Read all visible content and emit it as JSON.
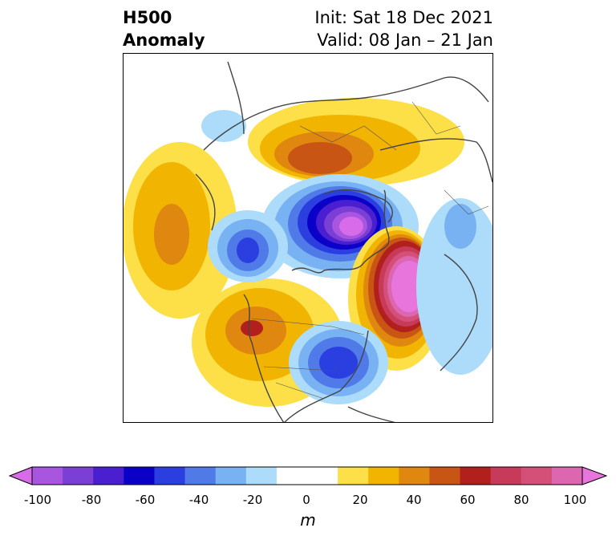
{
  "header": {
    "title_line1": "H500",
    "title_line2": "Anomaly",
    "init_text": "Init: Sat 18 Dec 2021",
    "valid_text": "Valid: 08 Jan – 21 Jan"
  },
  "colorbar": {
    "unit": "m",
    "ticks": [
      "-100",
      "-80",
      "-60",
      "-40",
      "-20",
      "0",
      "20",
      "40",
      "60",
      "80",
      "100"
    ],
    "bins": [
      {
        "range": "-100 to -90",
        "color": "#d86ce8"
      },
      {
        "range": "-90 to -80",
        "color": "#a855e0"
      },
      {
        "range": "-80 to -70",
        "color": "#7b3fd6"
      },
      {
        "range": "-70 to -60",
        "color": "#4a1fd0"
      },
      {
        "range": "-60 to -50",
        "color": "#0b00c8"
      },
      {
        "range": "-50 to -40",
        "color": "#2b3fe0"
      },
      {
        "range": "-40 to -30",
        "color": "#4f7ae8"
      },
      {
        "range": "-30 to -20",
        "color": "#78b2f2"
      },
      {
        "range": "-20 to -10",
        "color": "#acdcfa"
      },
      {
        "range": "-10 to 10",
        "color": "#ffffff"
      },
      {
        "range": "10 to 20",
        "color": "#fde047"
      },
      {
        "range": "20 to 30",
        "color": "#f1b400"
      },
      {
        "range": "30 to 40",
        "color": "#e0870f"
      },
      {
        "range": "40 to 50",
        "color": "#c85514"
      },
      {
        "range": "50 to 60",
        "color": "#b2201e"
      },
      {
        "range": "60 to 70",
        "color": "#c83a5a"
      },
      {
        "range": "70 to 80",
        "color": "#d45078"
      },
      {
        "range": "80 to 90",
        "color": "#dd66b0"
      },
      {
        "range": "90 to 100",
        "color": "#e775dc"
      }
    ]
  },
  "map": {
    "projection": "north polar stereographic",
    "features": [
      {
        "name": "positive anomaly maximum over far north Atlantic / Greenland-Iceland region",
        "color": "#e775dc"
      },
      {
        "name": "negative anomaly minimum over Siberian Arctic",
        "color": "#d86ce8"
      },
      {
        "name": "negative anomaly over eastern North America",
        "color": "#0b00c8"
      },
      {
        "name": "positive anomaly over western North America",
        "color": "#b2201e"
      },
      {
        "name": "positive anomaly over northern Eurasia",
        "color": "#c85514"
      },
      {
        "name": "positive anomaly over north Pacific",
        "color": "#e0870f"
      }
    ]
  }
}
